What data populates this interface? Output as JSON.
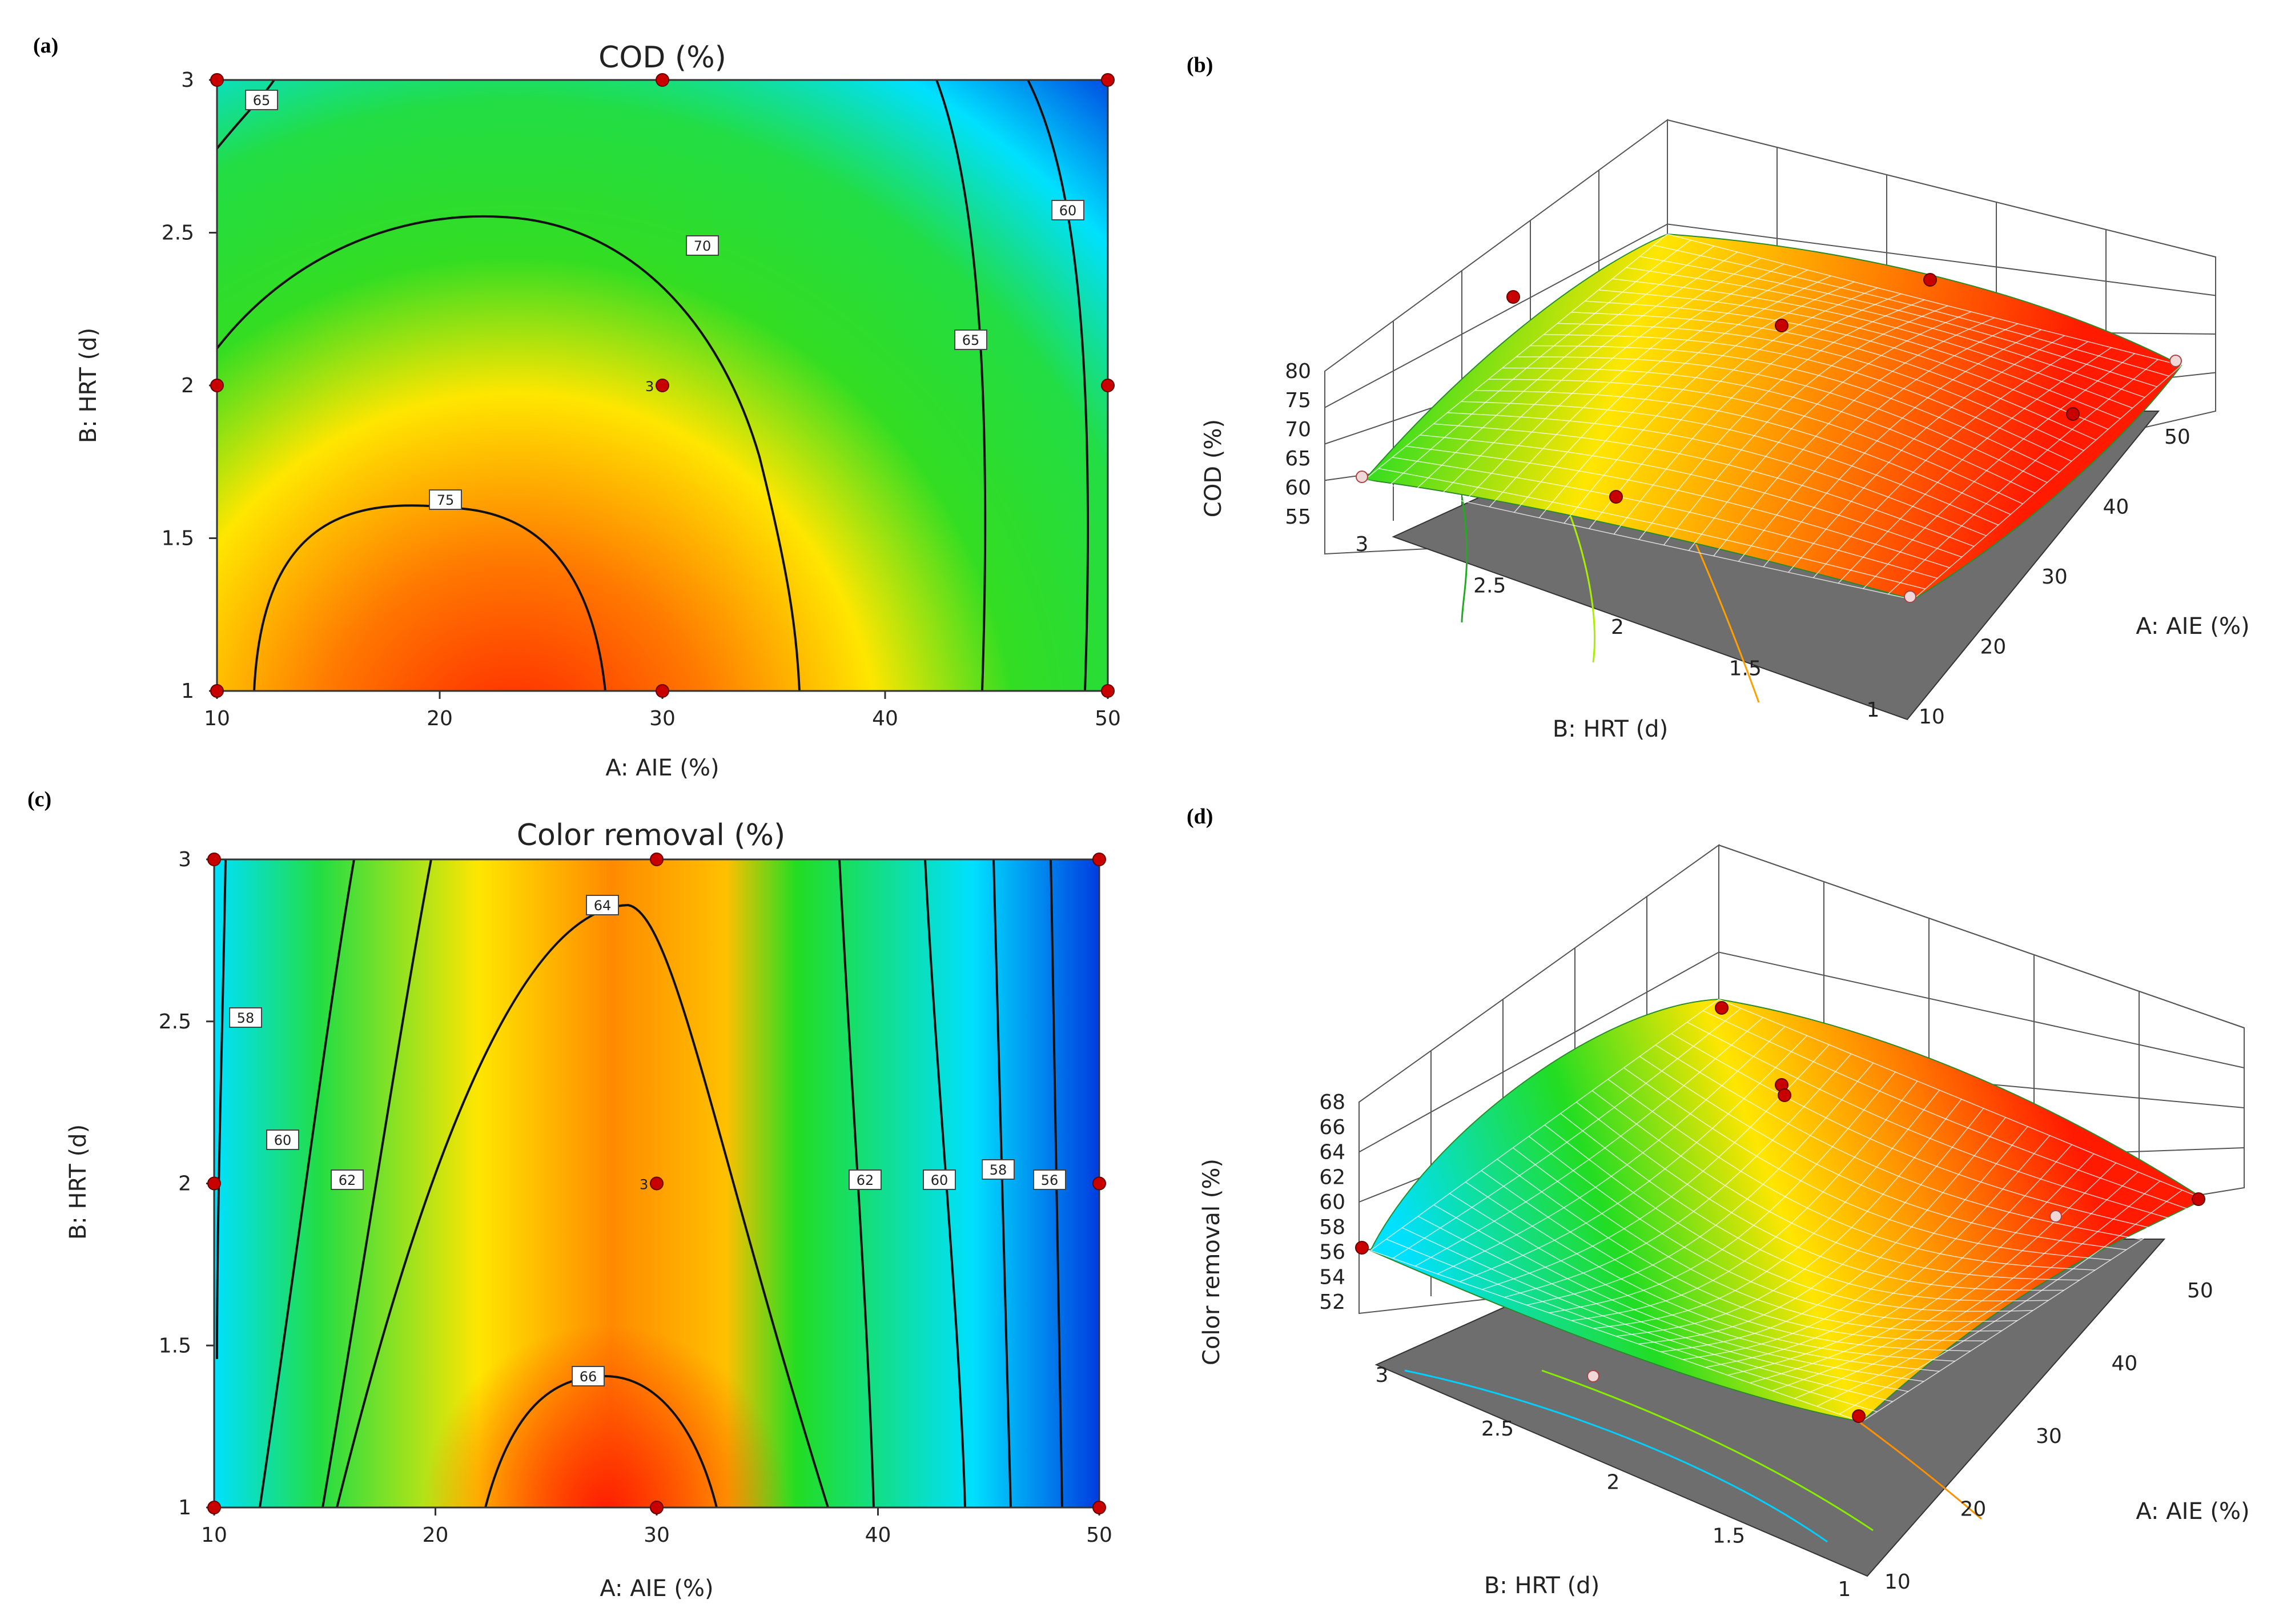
{
  "panels": {
    "a": {
      "letter": "(a)",
      "title": "COD (%)",
      "xlabel": "A: AIE (%)",
      "ylabel": "B: HRT (d)"
    },
    "b": {
      "letter": "(b)",
      "zlabel": "COD (%)",
      "xlabel": "A: AIE (%)",
      "ylabel": "B: HRT (d)"
    },
    "c": {
      "letter": "(c)",
      "title": "Color removal (%)",
      "xlabel": "A: AIE (%)",
      "ylabel": "B: HRT (d)"
    },
    "d": {
      "letter": "(d)",
      "zlabel": "Color removal (%)",
      "xlabel": "A: AIE (%)",
      "ylabel": "B: HRT (d)"
    }
  },
  "colors": {
    "high": "#ff1a00",
    "mid_high": "#ffe600",
    "mid": "#22dd22",
    "low": "#00e0ff",
    "lowest": "#0040e0",
    "point": "#c80000"
  },
  "chart_data": [
    {
      "id": "a",
      "type": "heatmap",
      "title": "COD (%)",
      "xlabel": "A: AIE (%)",
      "ylabel": "B: HRT (d)",
      "xlim": [
        10,
        50
      ],
      "ylim": [
        1,
        3
      ],
      "xticks": [
        "10",
        "20",
        "30",
        "40",
        "50"
      ],
      "yticks": [
        "1",
        "1.5",
        "2",
        "2.5",
        "3"
      ],
      "contour_labels": [
        "65",
        "70",
        "75",
        "65",
        "60"
      ],
      "center_label": "3",
      "design_points": [
        [
          10,
          1
        ],
        [
          30,
          1
        ],
        [
          50,
          1
        ],
        [
          10,
          2
        ],
        [
          30,
          2
        ],
        [
          50,
          2
        ],
        [
          10,
          3
        ],
        [
          30,
          3
        ],
        [
          50,
          3
        ]
      ]
    },
    {
      "id": "b",
      "type": "surface",
      "zlabel": "COD (%)",
      "xlabel": "A: AIE (%)",
      "ylabel": "B: HRT (d)",
      "xlim": [
        10,
        50
      ],
      "ylim": [
        1,
        3
      ],
      "zlim": [
        55,
        80
      ],
      "xticks": [
        "10",
        "20",
        "30",
        "40",
        "50"
      ],
      "yticks": [
        "1",
        "1.5",
        "2",
        "2.5",
        "3"
      ],
      "zticks": [
        "55",
        "60",
        "65",
        "70",
        "75",
        "80"
      ]
    },
    {
      "id": "c",
      "type": "heatmap",
      "title": "Color removal (%)",
      "xlabel": "A: AIE (%)",
      "ylabel": "B: HRT (d)",
      "xlim": [
        10,
        50
      ],
      "ylim": [
        1,
        3
      ],
      "xticks": [
        "10",
        "20",
        "30",
        "40",
        "50"
      ],
      "yticks": [
        "1",
        "1.5",
        "2",
        "2.5",
        "3"
      ],
      "contour_labels": [
        "58",
        "60",
        "62",
        "64",
        "66",
        "62",
        "60",
        "58",
        "56"
      ],
      "center_label": "3",
      "design_points": [
        [
          10,
          1
        ],
        [
          30,
          1
        ],
        [
          50,
          1
        ],
        [
          10,
          2
        ],
        [
          30,
          2
        ],
        [
          50,
          2
        ],
        [
          10,
          3
        ],
        [
          30,
          3
        ],
        [
          50,
          3
        ]
      ]
    },
    {
      "id": "d",
      "type": "surface",
      "zlabel": "Color removal (%)",
      "xlabel": "A: AIE (%)",
      "ylabel": "B: HRT (d)",
      "xlim": [
        10,
        50
      ],
      "ylim": [
        1,
        3
      ],
      "zlim": [
        52,
        68
      ],
      "xticks": [
        "10",
        "20",
        "30",
        "40",
        "50"
      ],
      "yticks": [
        "1",
        "1.5",
        "2",
        "2.5",
        "3"
      ],
      "zticks": [
        "52",
        "54",
        "56",
        "58",
        "60",
        "62",
        "64",
        "66",
        "68"
      ]
    }
  ]
}
